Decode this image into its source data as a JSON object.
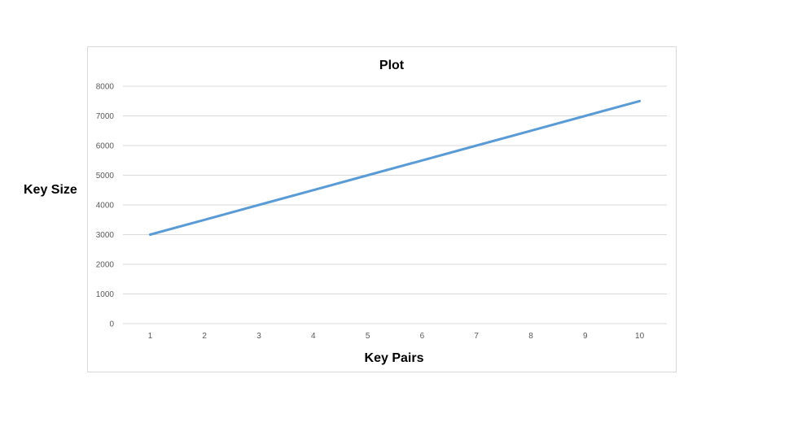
{
  "chart_data": {
    "type": "line",
    "title": "Plot",
    "xlabel": "Key Pairs",
    "ylabel": "Key Size",
    "x": [
      1,
      2,
      3,
      4,
      5,
      6,
      7,
      8,
      9,
      10
    ],
    "series": [
      {
        "values": [
          3000,
          3500,
          4000,
          4500,
          5000,
          5500,
          6000,
          6500,
          7000,
          7500
        ],
        "color": "#5b9bd5"
      }
    ],
    "ylim": [
      0,
      8000
    ],
    "yticks": [
      0,
      1000,
      2000,
      3000,
      4000,
      5000,
      6000,
      7000,
      8000
    ],
    "grid": true,
    "legend": "none",
    "gridline_color": "#d9d9d9"
  }
}
